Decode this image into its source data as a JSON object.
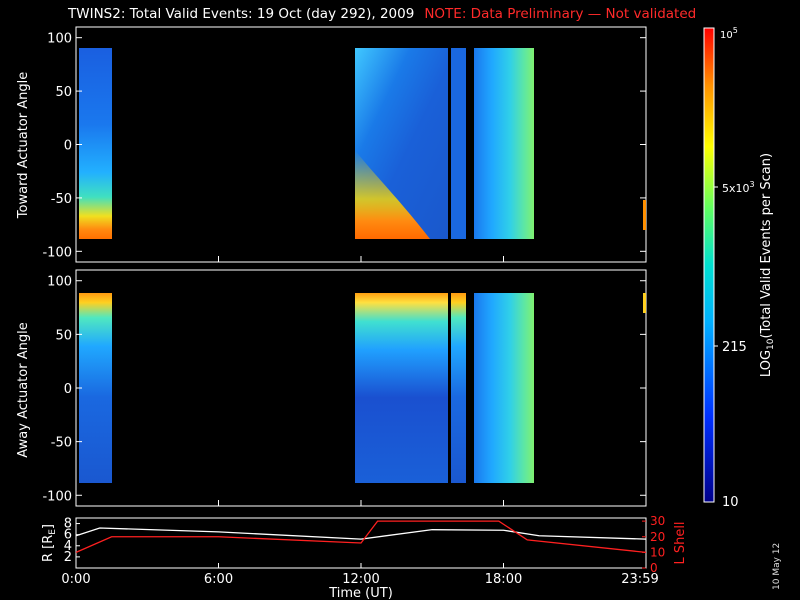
{
  "title": "TWINS2: Total Valid Events: 19 Oct (day 292), 2009",
  "note": "NOTE: Data Preliminary — Not validated",
  "stamp": "10 May 12",
  "chart_data": [
    {
      "type": "heatmap",
      "ylabel": "Toward Actuator Angle",
      "ylim": [
        -110,
        110
      ],
      "yticks": [
        100,
        50,
        0,
        -50,
        -100
      ],
      "xlim": [
        0,
        24
      ],
      "data_blocks_hours": [
        [
          0.1,
          1.1
        ],
        [
          11.85,
          15.8
        ],
        [
          15.95,
          16.5
        ],
        [
          16.7,
          19.2
        ]
      ],
      "angle_range": [
        -88,
        90
      ],
      "pattern": "high counts near -88 deg, decreasing toward +90"
    },
    {
      "type": "heatmap",
      "ylabel": "Away Actuator Angle",
      "ylim": [
        -110,
        110
      ],
      "yticks": [
        100,
        50,
        0,
        -50,
        -100
      ],
      "xlim": [
        0,
        24
      ],
      "data_blocks_hours": [
        [
          0.1,
          1.1
        ],
        [
          11.85,
          15.8
        ],
        [
          15.95,
          16.5
        ],
        [
          16.7,
          19.2
        ]
      ],
      "angle_range": [
        -88,
        90
      ],
      "pattern": "high counts near +90 deg, decreasing toward -88"
    },
    {
      "type": "line",
      "ylabel_left": "R [R",
      "ylabel_left_sub": "E",
      "ylabel_left_end": "]",
      "ylabel_right": "L Shell",
      "left_yticks": [
        "8",
        "6",
        "4",
        "2"
      ],
      "right_yticks": [
        "30",
        "20",
        "10",
        "0"
      ],
      "xticks": [
        "0:00",
        "6:00",
        "12:00",
        "18:00",
        "23:59"
      ],
      "xlabel": "Time (UT)",
      "series": [
        {
          "color": "#ffffff",
          "x": [
            0,
            1,
            6,
            12,
            15,
            18,
            19.5,
            24
          ],
          "y": [
            5.8,
            7.2,
            6.5,
            5.2,
            6.9,
            6.8,
            5.8,
            5.2
          ]
        },
        {
          "color": "#ff2020",
          "x": [
            0,
            1.5,
            6,
            12,
            12.7,
            17.8,
            19,
            24
          ],
          "y": [
            10,
            20,
            20,
            16,
            30,
            30,
            18,
            10
          ]
        }
      ]
    }
  ],
  "colorbar": {
    "label_main": "LOG",
    "label_sub": "10",
    "label_rest": "(Total Valid  Events per Scan)",
    "tick_top": "10",
    "tick_top_exp": "5",
    "tick_mid1": "5x10",
    "tick_mid1_exp": "3",
    "tick_mid2": "215",
    "tick_bottom": "10"
  }
}
